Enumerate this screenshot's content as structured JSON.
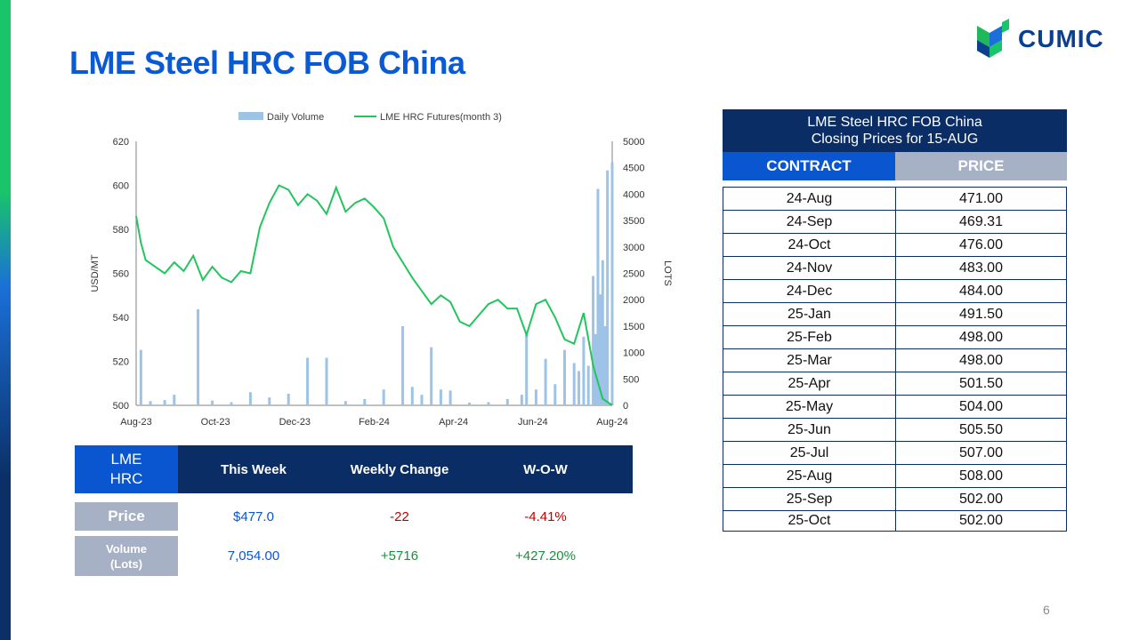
{
  "page": {
    "title": "LME Steel HRC FOB China",
    "page_number": "6"
  },
  "logo": {
    "text": "CUMIC"
  },
  "colors": {
    "title": "#0a5ad6",
    "navy": "#0b2d66",
    "blue": "#0a55d0",
    "grey": "#a7b1c6",
    "line": "#22c55e",
    "bar": "#9dc3e6",
    "positive": "#0a55d0",
    "negative": "#c00000",
    "positive_green": "#1a8f3a"
  },
  "chart_data": {
    "type": "bar+line",
    "legend": [
      "Daily Volume",
      "LME HRC Futures(month 3)"
    ],
    "legend_placement": "top",
    "xlabel_ticks": [
      "Aug-23",
      "Oct-23",
      "Dec-23",
      "Feb-24",
      "Apr-24",
      "Jun-24",
      "Aug-24"
    ],
    "ylabel_left": "USD/MT",
    "ylabel_right": "LOTS",
    "ylim_left": [
      500,
      620
    ],
    "ylim_right": [
      0,
      5000
    ],
    "left_ticks": [
      "500",
      "520",
      "540",
      "560",
      "580",
      "600",
      "620"
    ],
    "right_ticks": [
      "0",
      "500",
      "1000",
      "1500",
      "2000",
      "2500",
      "3000",
      "3500",
      "4000",
      "4500",
      "5000"
    ],
    "grid": false,
    "series": [
      {
        "name": "LME HRC Futures(month 3)",
        "axis": "left",
        "kind": "line",
        "x_fraction": [
          0,
          0.01,
          0.02,
          0.04,
          0.06,
          0.08,
          0.1,
          0.12,
          0.14,
          0.16,
          0.18,
          0.2,
          0.22,
          0.24,
          0.26,
          0.28,
          0.3,
          0.32,
          0.34,
          0.36,
          0.38,
          0.4,
          0.42,
          0.44,
          0.46,
          0.48,
          0.5,
          0.52,
          0.54,
          0.56,
          0.58,
          0.6,
          0.62,
          0.64,
          0.66,
          0.68,
          0.7,
          0.72,
          0.74,
          0.76,
          0.78,
          0.8,
          0.82,
          0.84,
          0.86,
          0.88,
          0.9,
          0.92,
          0.94,
          0.96,
          0.98,
          1.0
        ],
        "values": [
          586,
          574,
          566,
          563,
          560,
          565,
          561,
          568,
          557,
          563,
          558,
          556,
          561,
          560,
          581,
          592,
          600,
          598,
          591,
          596,
          593,
          587,
          599,
          588,
          592,
          594,
          590,
          585,
          572,
          565,
          558,
          552,
          546,
          550,
          547,
          538,
          536,
          541,
          546,
          548,
          544,
          544,
          532,
          546,
          548,
          540,
          530,
          528,
          542,
          518,
          503,
          500
        ]
      },
      {
        "name": "Daily Volume",
        "axis": "right",
        "kind": "bar",
        "bars": [
          [
            0.01,
            1050
          ],
          [
            0.03,
            80
          ],
          [
            0.06,
            100
          ],
          [
            0.08,
            200
          ],
          [
            0.13,
            1820
          ],
          [
            0.16,
            90
          ],
          [
            0.2,
            60
          ],
          [
            0.24,
            250
          ],
          [
            0.28,
            150
          ],
          [
            0.32,
            220
          ],
          [
            0.36,
            900
          ],
          [
            0.4,
            900
          ],
          [
            0.44,
            80
          ],
          [
            0.48,
            120
          ],
          [
            0.52,
            300
          ],
          [
            0.56,
            1500
          ],
          [
            0.58,
            350
          ],
          [
            0.6,
            200
          ],
          [
            0.62,
            1100
          ],
          [
            0.64,
            300
          ],
          [
            0.66,
            280
          ],
          [
            0.7,
            50
          ],
          [
            0.74,
            60
          ],
          [
            0.78,
            120
          ],
          [
            0.81,
            200
          ],
          [
            0.82,
            1400
          ],
          [
            0.84,
            300
          ],
          [
            0.86,
            880
          ],
          [
            0.88,
            400
          ],
          [
            0.9,
            1050
          ],
          [
            0.92,
            800
          ],
          [
            0.93,
            650
          ],
          [
            0.94,
            1300
          ],
          [
            0.95,
            750
          ],
          [
            0.96,
            2450
          ],
          [
            0.965,
            1350
          ],
          [
            0.97,
            4100
          ],
          [
            0.975,
            2100
          ],
          [
            0.98,
            2750
          ],
          [
            0.985,
            1500
          ],
          [
            0.99,
            4450
          ],
          [
            1.0,
            4600
          ]
        ]
      }
    ]
  },
  "summary": {
    "header_label": "LME HRC",
    "columns": [
      "This Week",
      "Weekly Change",
      "W-O-W"
    ],
    "rows": [
      {
        "label": "Price",
        "this_week": "$477.0",
        "change": "-22",
        "wow": "-4.41%"
      },
      {
        "label": "Volume (Lots)",
        "this_week": "7,054.00",
        "change": "+5716",
        "wow": "+427.20%"
      }
    ]
  },
  "closing_table": {
    "title_line1": "LME Steel HRC FOB China",
    "title_line2": "Closing Prices for 15-AUG",
    "header_contract": "CONTRACT",
    "header_price": "PRICE",
    "rows": [
      {
        "contract": "24-Aug",
        "price": "471.00"
      },
      {
        "contract": "24-Sep",
        "price": "469.31"
      },
      {
        "contract": "24-Oct",
        "price": "476.00"
      },
      {
        "contract": "24-Nov",
        "price": "483.00"
      },
      {
        "contract": "24-Dec",
        "price": "484.00"
      },
      {
        "contract": "25-Jan",
        "price": "491.50"
      },
      {
        "contract": "25-Feb",
        "price": "498.00"
      },
      {
        "contract": "25-Mar",
        "price": "498.00"
      },
      {
        "contract": "25-Apr",
        "price": "501.50"
      },
      {
        "contract": "25-May",
        "price": "504.00"
      },
      {
        "contract": "25-Jun",
        "price": "505.50"
      },
      {
        "contract": "25-Jul",
        "price": "507.00"
      },
      {
        "contract": "25-Aug",
        "price": "508.00"
      },
      {
        "contract": "25-Sep",
        "price": "502.00"
      },
      {
        "contract": "25-Oct",
        "price": "502.00"
      }
    ]
  }
}
